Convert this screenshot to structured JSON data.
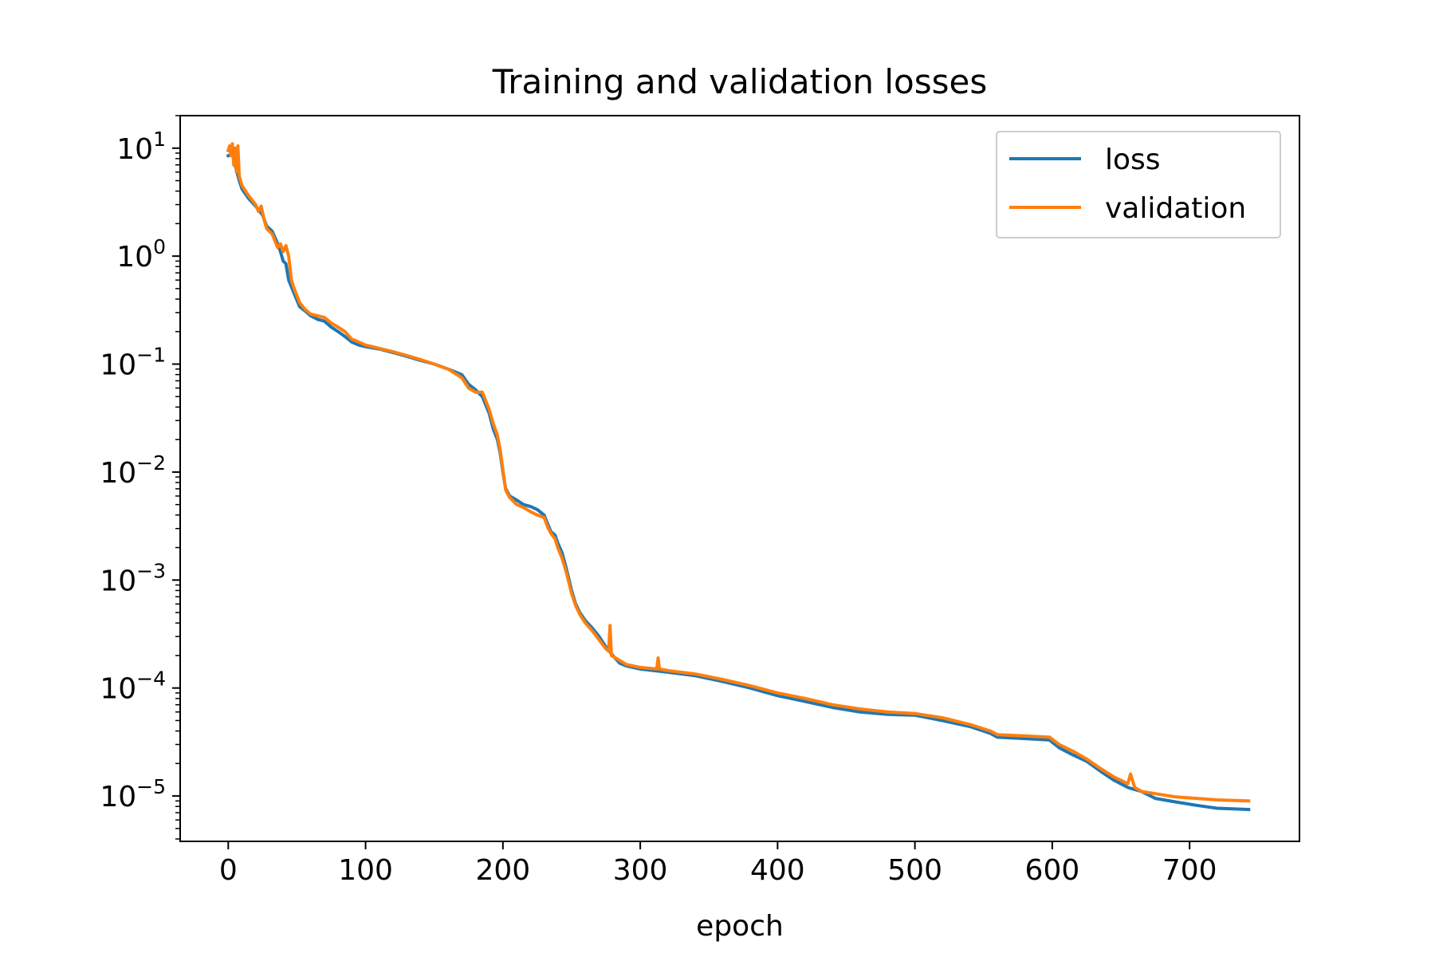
{
  "chart_data": {
    "type": "line",
    "title": "Training and validation losses",
    "xlabel": "epoch",
    "ylabel": "",
    "xlim": [
      -35,
      780
    ],
    "ylim": [
      3.8e-06,
      20
    ],
    "yscale": "log",
    "grid": false,
    "legend_position": "top-right",
    "xticks": [
      0,
      100,
      200,
      300,
      400,
      500,
      600,
      700
    ],
    "xtick_labels": [
      "0",
      "100",
      "200",
      "300",
      "400",
      "500",
      "600",
      "700"
    ],
    "yticks": [
      {
        "value": 10,
        "mantissa": "10",
        "exponent": "1"
      },
      {
        "value": 1,
        "mantissa": "10",
        "exponent": "0"
      },
      {
        "value": 0.1,
        "mantissa": "10",
        "exponent": "−1"
      },
      {
        "value": 0.01,
        "mantissa": "10",
        "exponent": "−2"
      },
      {
        "value": 0.001,
        "mantissa": "10",
        "exponent": "−3"
      },
      {
        "value": 0.0001,
        "mantissa": "10",
        "exponent": "−4"
      },
      {
        "value": 1e-05,
        "mantissa": "10",
        "exponent": "−5"
      }
    ],
    "series": [
      {
        "name": "loss",
        "color": "#1f77b4",
        "points": [
          [
            0,
            8.5
          ],
          [
            3,
            8.8
          ],
          [
            5,
            7.0
          ],
          [
            8,
            5.0
          ],
          [
            10,
            4.2
          ],
          [
            15,
            3.4
          ],
          [
            20,
            2.9
          ],
          [
            25,
            2.4
          ],
          [
            28,
            1.9
          ],
          [
            32,
            1.7
          ],
          [
            36,
            1.3
          ],
          [
            38,
            1.1
          ],
          [
            40,
            0.9
          ],
          [
            42,
            0.85
          ],
          [
            44,
            0.6
          ],
          [
            48,
            0.45
          ],
          [
            52,
            0.34
          ],
          [
            56,
            0.31
          ],
          [
            60,
            0.28
          ],
          [
            65,
            0.26
          ],
          [
            70,
            0.25
          ],
          [
            75,
            0.22
          ],
          [
            80,
            0.2
          ],
          [
            85,
            0.18
          ],
          [
            90,
            0.16
          ],
          [
            95,
            0.15
          ],
          [
            100,
            0.145
          ],
          [
            110,
            0.138
          ],
          [
            120,
            0.128
          ],
          [
            130,
            0.118
          ],
          [
            140,
            0.108
          ],
          [
            150,
            0.1
          ],
          [
            160,
            0.09
          ],
          [
            170,
            0.08
          ],
          [
            175,
            0.065
          ],
          [
            180,
            0.058
          ],
          [
            185,
            0.05
          ],
          [
            190,
            0.035
          ],
          [
            193,
            0.025
          ],
          [
            196,
            0.02
          ],
          [
            198,
            0.015
          ],
          [
            200,
            0.01
          ],
          [
            202,
            0.007
          ],
          [
            205,
            0.006
          ],
          [
            210,
            0.0055
          ],
          [
            215,
            0.005
          ],
          [
            220,
            0.0048
          ],
          [
            225,
            0.0045
          ],
          [
            230,
            0.004
          ],
          [
            233,
            0.0032
          ],
          [
            235,
            0.0028
          ],
          [
            238,
            0.0026
          ],
          [
            240,
            0.0022
          ],
          [
            243,
            0.0018
          ],
          [
            246,
            0.0013
          ],
          [
            250,
            0.0008
          ],
          [
            253,
            0.0006
          ],
          [
            256,
            0.0005
          ],
          [
            260,
            0.00042
          ],
          [
            265,
            0.00036
          ],
          [
            270,
            0.0003
          ],
          [
            275,
            0.00024
          ],
          [
            280,
            0.0002
          ],
          [
            285,
            0.00017
          ],
          [
            290,
            0.00016
          ],
          [
            300,
            0.00015
          ],
          [
            320,
            0.00014
          ],
          [
            340,
            0.00013
          ],
          [
            360,
            0.000115
          ],
          [
            380,
            0.0001
          ],
          [
            400,
            8.5e-05
          ],
          [
            420,
            7.5e-05
          ],
          [
            440,
            6.6e-05
          ],
          [
            460,
            6e-05
          ],
          [
            480,
            5.7e-05
          ],
          [
            500,
            5.6e-05
          ],
          [
            520,
            5e-05
          ],
          [
            540,
            4.4e-05
          ],
          [
            555,
            3.8e-05
          ],
          [
            560,
            3.5e-05
          ],
          [
            580,
            3.4e-05
          ],
          [
            598,
            3.3e-05
          ],
          [
            605,
            2.8e-05
          ],
          [
            615,
            2.4e-05
          ],
          [
            625,
            2.1e-05
          ],
          [
            635,
            1.7e-05
          ],
          [
            645,
            1.4e-05
          ],
          [
            655,
            1.2e-05
          ],
          [
            665,
            1.1e-05
          ],
          [
            675,
            9.5e-06
          ],
          [
            690,
            8.8e-06
          ],
          [
            705,
            8.2e-06
          ],
          [
            720,
            7.7e-06
          ],
          [
            743,
            7.5e-06
          ]
        ]
      },
      {
        "name": "validation",
        "color": "#ff7f0e",
        "points": [
          [
            0,
            9.5
          ],
          [
            1,
            10.5
          ],
          [
            2,
            8.5
          ],
          [
            3,
            11.0
          ],
          [
            4,
            7.0
          ],
          [
            5,
            10.0
          ],
          [
            6,
            6.0
          ],
          [
            7,
            10.5
          ],
          [
            8,
            5.5
          ],
          [
            10,
            4.5
          ],
          [
            15,
            3.6
          ],
          [
            20,
            3.0
          ],
          [
            22,
            2.6
          ],
          [
            24,
            2.9
          ],
          [
            26,
            2.2
          ],
          [
            28,
            1.8
          ],
          [
            32,
            1.6
          ],
          [
            36,
            1.2
          ],
          [
            38,
            1.3
          ],
          [
            40,
            1.1
          ],
          [
            42,
            1.25
          ],
          [
            44,
            1.0
          ],
          [
            46,
            0.6
          ],
          [
            48,
            0.5
          ],
          [
            52,
            0.37
          ],
          [
            56,
            0.32
          ],
          [
            60,
            0.29
          ],
          [
            65,
            0.28
          ],
          [
            70,
            0.27
          ],
          [
            75,
            0.24
          ],
          [
            80,
            0.22
          ],
          [
            85,
            0.2
          ],
          [
            90,
            0.17
          ],
          [
            95,
            0.16
          ],
          [
            100,
            0.15
          ],
          [
            110,
            0.14
          ],
          [
            120,
            0.13
          ],
          [
            130,
            0.12
          ],
          [
            140,
            0.11
          ],
          [
            150,
            0.1
          ],
          [
            160,
            0.09
          ],
          [
            170,
            0.075
          ],
          [
            175,
            0.06
          ],
          [
            180,
            0.055
          ],
          [
            185,
            0.055
          ],
          [
            190,
            0.038
          ],
          [
            193,
            0.028
          ],
          [
            196,
            0.022
          ],
          [
            198,
            0.016
          ],
          [
            200,
            0.0105
          ],
          [
            202,
            0.0068
          ],
          [
            205,
            0.0058
          ],
          [
            210,
            0.005
          ],
          [
            215,
            0.0047
          ],
          [
            220,
            0.0043
          ],
          [
            225,
            0.004
          ],
          [
            230,
            0.0038
          ],
          [
            233,
            0.003
          ],
          [
            235,
            0.0027
          ],
          [
            238,
            0.0024
          ],
          [
            240,
            0.002
          ],
          [
            243,
            0.0016
          ],
          [
            246,
            0.0012
          ],
          [
            250,
            0.00075
          ],
          [
            253,
            0.00058
          ],
          [
            256,
            0.00048
          ],
          [
            260,
            0.0004
          ],
          [
            265,
            0.00034
          ],
          [
            270,
            0.00028
          ],
          [
            275,
            0.00023
          ],
          [
            277,
            0.00022
          ],
          [
            278,
            0.00038
          ],
          [
            279,
            0.0002
          ],
          [
            282,
            0.00019
          ],
          [
            285,
            0.00018
          ],
          [
            290,
            0.000165
          ],
          [
            300,
            0.000155
          ],
          [
            312,
            0.00015
          ],
          [
            313,
            0.00019
          ],
          [
            314,
            0.00015
          ],
          [
            320,
            0.000145
          ],
          [
            340,
            0.000135
          ],
          [
            360,
            0.00012
          ],
          [
            380,
            0.000105
          ],
          [
            400,
            9e-05
          ],
          [
            420,
            8e-05
          ],
          [
            440,
            7e-05
          ],
          [
            460,
            6.4e-05
          ],
          [
            480,
            6e-05
          ],
          [
            500,
            5.8e-05
          ],
          [
            520,
            5.3e-05
          ],
          [
            540,
            4.6e-05
          ],
          [
            555,
            4e-05
          ],
          [
            560,
            3.7e-05
          ],
          [
            580,
            3.6e-05
          ],
          [
            598,
            3.5e-05
          ],
          [
            605,
            3e-05
          ],
          [
            615,
            2.6e-05
          ],
          [
            625,
            2.2e-05
          ],
          [
            635,
            1.8e-05
          ],
          [
            645,
            1.5e-05
          ],
          [
            655,
            1.3e-05
          ],
          [
            657,
            1.6e-05
          ],
          [
            660,
            1.2e-05
          ],
          [
            665,
            1.1e-05
          ],
          [
            675,
            1.05e-05
          ],
          [
            690,
            9.8e-06
          ],
          [
            705,
            9.5e-06
          ],
          [
            720,
            9.2e-06
          ],
          [
            743,
            9e-06
          ]
        ]
      }
    ]
  }
}
